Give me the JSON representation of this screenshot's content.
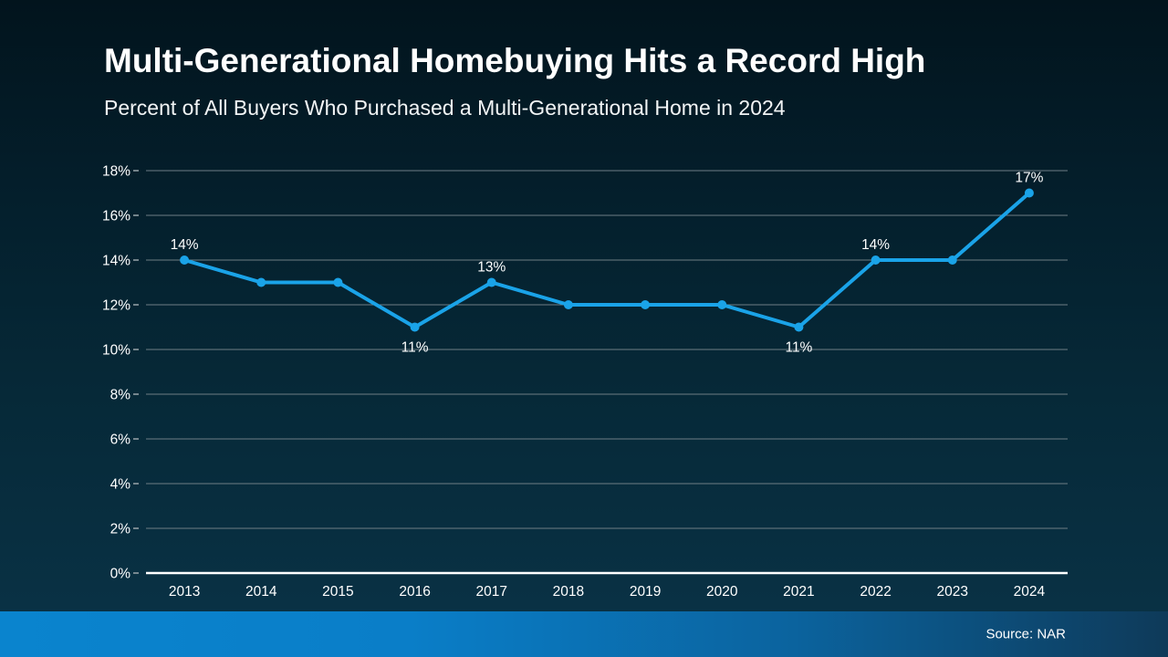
{
  "header": {
    "title": "Multi-Generational Homebuying Hits a Record High",
    "subtitle": "Percent of All Buyers Who Purchased a Multi-Generational Home in 2024"
  },
  "footer": {
    "source": "Source: NAR"
  },
  "colors": {
    "line": "#1aa3e8",
    "marker": "#1aa3e8",
    "gridline": "#6e7d85",
    "tick": "#9aa5aa",
    "axis_line": "#ffffff",
    "label_text": "#ffffff",
    "bar_gradient_left": "#0a84ce",
    "bar_gradient_right": "#0e3a59",
    "background_top": "#02141d",
    "background_bottom": "#0a3347"
  },
  "chart_data": {
    "type": "line",
    "title": "Multi-Generational Homebuying Hits a Record High",
    "subtitle": "Percent of All Buyers Who Purchased a Multi-Generational Home in 2024",
    "categories": [
      "2013",
      "2014",
      "2015",
      "2016",
      "2017",
      "2018",
      "2019",
      "2020",
      "2021",
      "2022",
      "2023",
      "2024"
    ],
    "values": [
      14,
      13,
      13,
      11,
      13,
      12,
      12,
      12,
      11,
      14,
      14,
      17
    ],
    "xlabel": "",
    "ylabel": "",
    "ylim": [
      0,
      18
    ],
    "ytick_step": 2,
    "yticks": [
      "0%",
      "2%",
      "4%",
      "6%",
      "8%",
      "10%",
      "12%",
      "14%",
      "16%",
      "18%"
    ],
    "grid": true,
    "legend": false,
    "point_labels": [
      {
        "index": 0,
        "text": "14%",
        "position": "above"
      },
      {
        "index": 3,
        "text": "11%",
        "position": "below"
      },
      {
        "index": 4,
        "text": "13%",
        "position": "above"
      },
      {
        "index": 8,
        "text": "11%",
        "position": "below"
      },
      {
        "index": 9,
        "text": "14%",
        "position": "above"
      },
      {
        "index": 11,
        "text": "17%",
        "position": "above"
      }
    ]
  }
}
